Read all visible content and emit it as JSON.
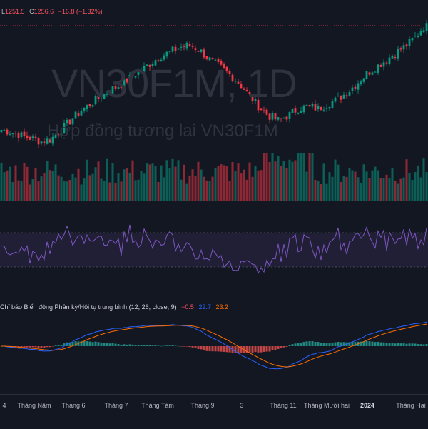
{
  "legend": {
    "low_label": "L",
    "low_value": "1251.5",
    "close_label": "C",
    "close_value": "1256.6",
    "change": "−16.8 (−1.32%)"
  },
  "watermark": {
    "title": "VN30F1M, 1D",
    "subtitle": "Hợp đồng tương lai VN30F1M"
  },
  "macd": {
    "label": "Chỉ báo Biến động Phân kỳ/Hội tụ trung bình (12, 26, close, 9)",
    "hist_value": "−0.5",
    "macd_value": "22.7",
    "signal_value": "23.2",
    "hist_color": "#f7525f",
    "macd_color": "#2962ff",
    "signal_color": "#ff6d00"
  },
  "colors": {
    "up": "#089981",
    "down": "#f23645",
    "rsi_line": "#7e57c2",
    "rsi_band": "#7e57c2"
  },
  "x_axis": [
    "4",
    "Tháng Năm",
    "Tháng 6",
    "Tháng 7",
    "Tháng Tám",
    "Tháng 9",
    "3",
    "Tháng 11",
    "Tháng Mười hai",
    "2024",
    "Tháng Hai"
  ],
  "chart_data": {
    "type": "candlestick",
    "price_close_keypoints": [
      1030,
      1025,
      1018,
      1012,
      1005,
      1010,
      1030,
      1050,
      1070,
      1085,
      1100,
      1115,
      1125,
      1140,
      1155,
      1170,
      1185,
      1195,
      1205,
      1210,
      1200,
      1180,
      1165,
      1150,
      1130,
      1105,
      1080,
      1060,
      1050,
      1060,
      1075,
      1080,
      1075,
      1085,
      1095,
      1110,
      1130,
      1150,
      1165,
      1180,
      1195,
      1210,
      1230,
      1256.6
    ],
    "rsi_levels": [
      70,
      30
    ],
    "macd_signal_params": "12, 26, close, 9"
  }
}
